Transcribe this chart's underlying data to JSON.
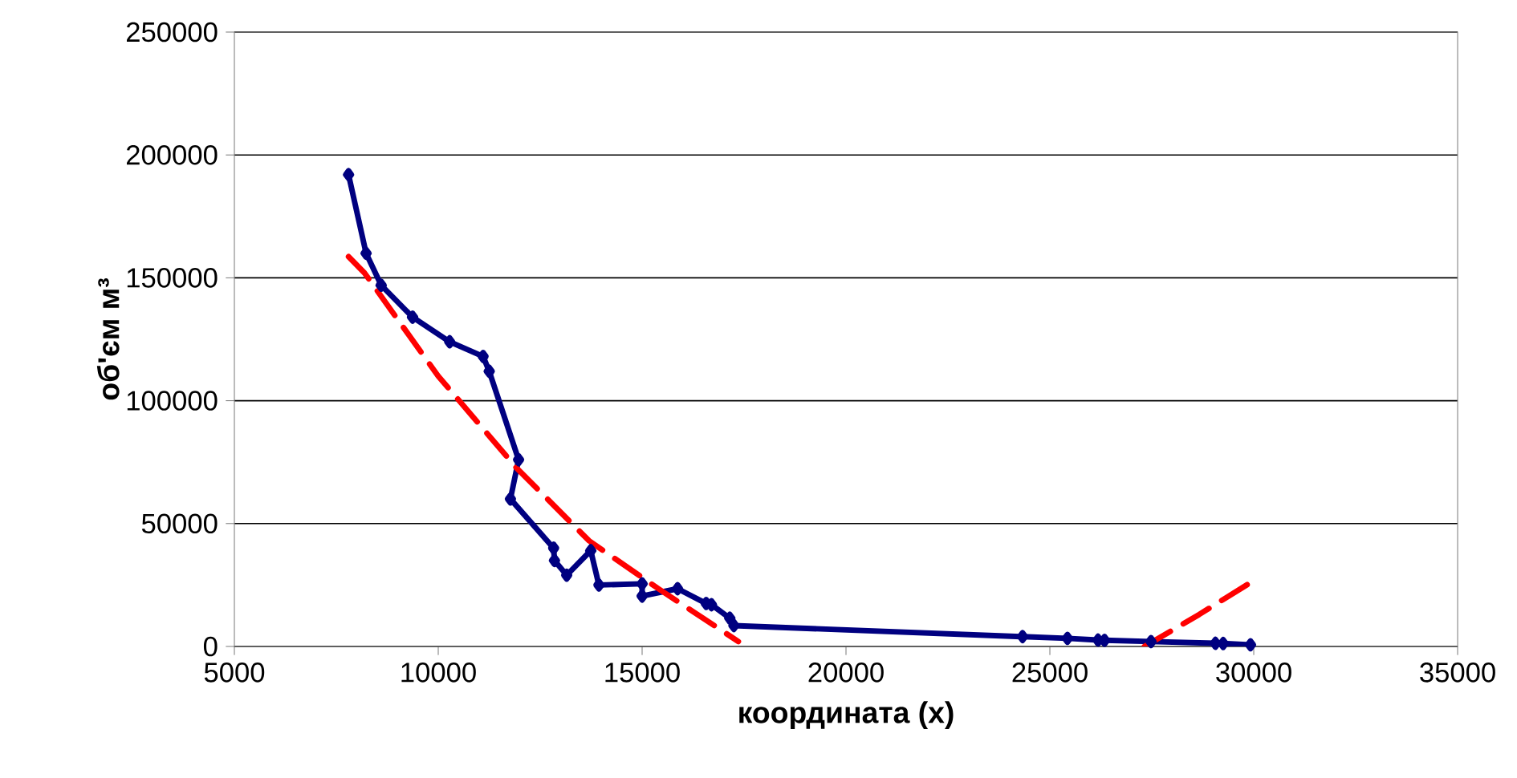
{
  "chart_data": {
    "type": "line",
    "xlabel": "координата (x)",
    "ylabel": "об'єм м³",
    "xlim": [
      5000,
      35000
    ],
    "xticks": [
      5000,
      10000,
      15000,
      20000,
      25000,
      30000,
      35000
    ],
    "ylim": [
      0,
      250000
    ],
    "yticks": [
      0,
      50000,
      100000,
      150000,
      200000,
      250000
    ],
    "grid": "y",
    "series": [
      {
        "color": "#000080",
        "marker": "diamond",
        "line_style": "solid",
        "x": [
          7800,
          8230,
          8600,
          9370,
          10280,
          11100,
          11250,
          11970,
          11770,
          12830,
          12850,
          13150,
          13740,
          13940,
          15000,
          15000,
          15870,
          16570,
          16700,
          17150,
          17250,
          24330,
          25430,
          26180,
          26340,
          27480,
          29060,
          29250,
          29920
        ],
        "values": [
          192000,
          160000,
          147000,
          134000,
          124000,
          118000,
          112000,
          76000,
          60000,
          40000,
          35000,
          29000,
          39000,
          25000,
          25500,
          20500,
          23500,
          17500,
          17000,
          11500,
          8500,
          4000,
          3300,
          2600,
          2500,
          2000,
          1300,
          1200,
          700
        ]
      },
      {
        "type": "line",
        "color": "#ff0000",
        "marker": "none",
        "line_style": "dashed",
        "x": [
          7800,
          8190,
          10000,
          11460,
          11920,
          13700,
          15400,
          17360,
          22000,
          27320,
          28660,
          29920
        ],
        "values": [
          158600,
          152000,
          110000,
          81600,
          72600,
          43000,
          23500,
          2000,
          null,
          0,
          13000,
          26000
        ]
      }
    ]
  }
}
